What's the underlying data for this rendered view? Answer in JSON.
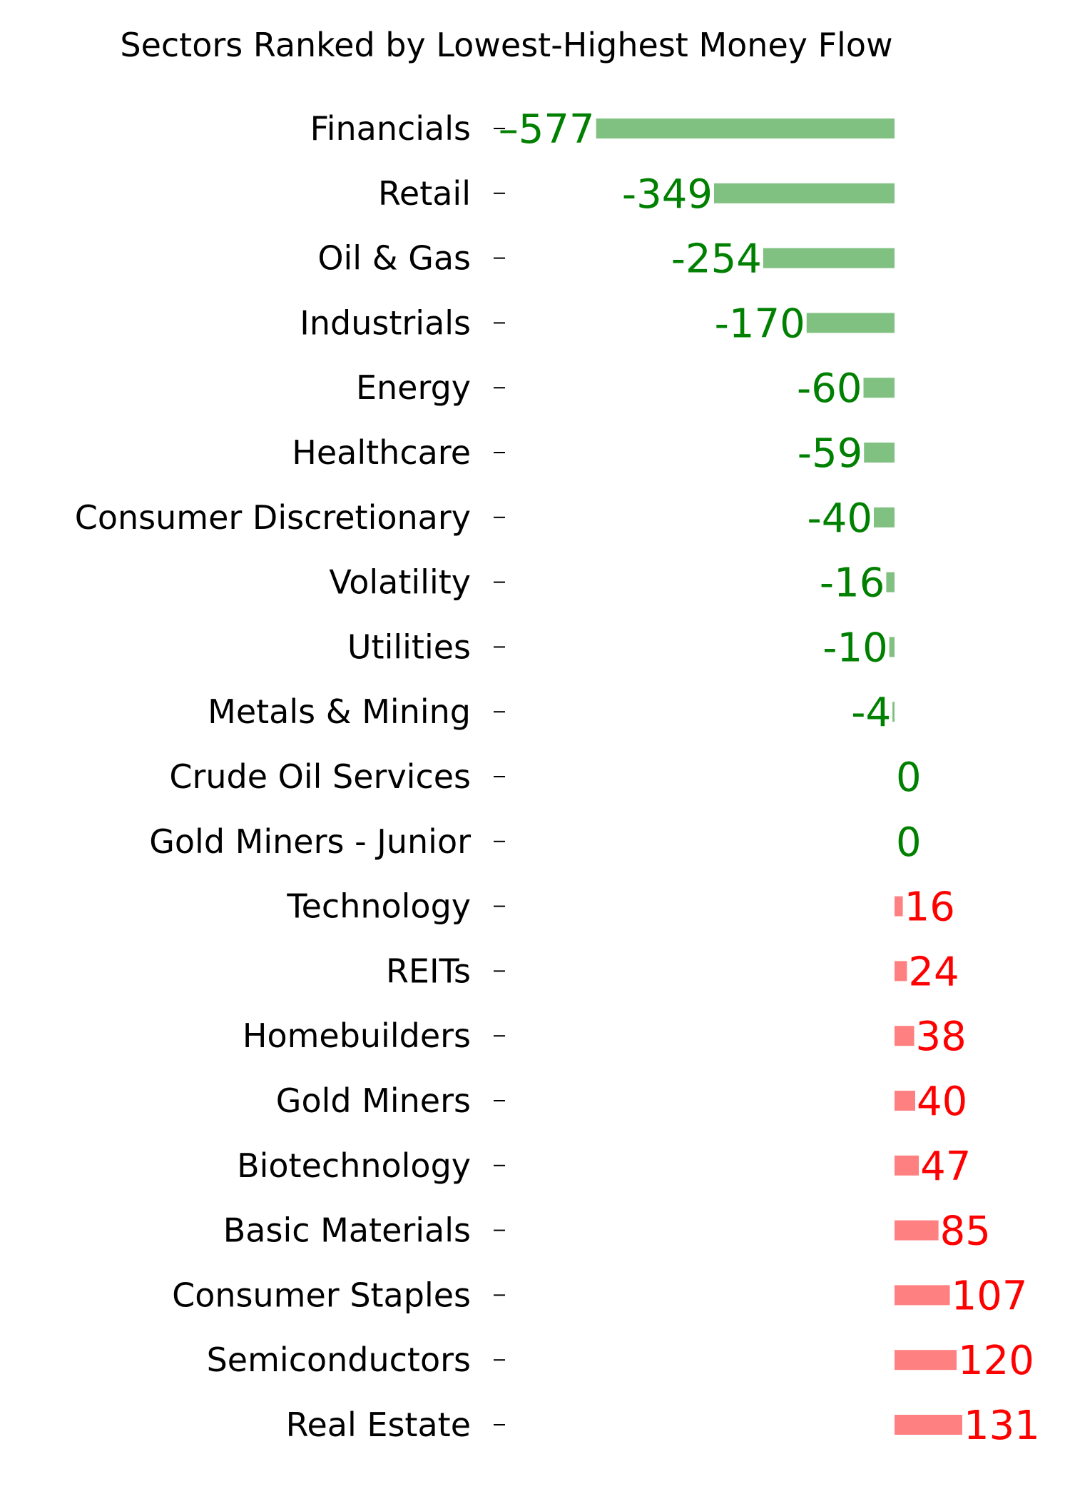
{
  "chart_data": {
    "type": "bar",
    "orientation": "horizontal",
    "title": "Sectors Ranked by Lowest-Highest Money Flow",
    "xlabel": "",
    "ylabel": "",
    "categories": [
      "Financials",
      "Retail",
      "Oil & Gas",
      "Industrials",
      "Energy",
      "Healthcare",
      "Consumer Discretionary",
      "Volatility",
      "Utilities",
      "Metals & Mining",
      "Crude Oil Services",
      "Gold Miners - Junior",
      "Technology",
      "REITs",
      "Homebuilders",
      "Gold Miners",
      "Biotechnology",
      "Basic Materials",
      "Consumer Staples",
      "Semiconductors",
      "Real Estate"
    ],
    "values": [
      -577,
      -349,
      -254,
      -170,
      -60,
      -59,
      -40,
      -16,
      -10,
      -4,
      0,
      0,
      16,
      24,
      38,
      40,
      47,
      85,
      107,
      120,
      131
    ],
    "value_labels": [
      "–577",
      "-349",
      "-254",
      "-170",
      "-60",
      "-59",
      "-40",
      "-16",
      "-10",
      "-4",
      "0",
      "0",
      "16",
      "24",
      "38",
      "40",
      "47",
      "85",
      "107",
      "120",
      "131"
    ],
    "colors": {
      "negative_bar": "#80c080",
      "positive_bar": "#ff8080",
      "negative_text": "#008000",
      "positive_text": "#ff0000"
    },
    "grid": false,
    "legend": "none"
  }
}
